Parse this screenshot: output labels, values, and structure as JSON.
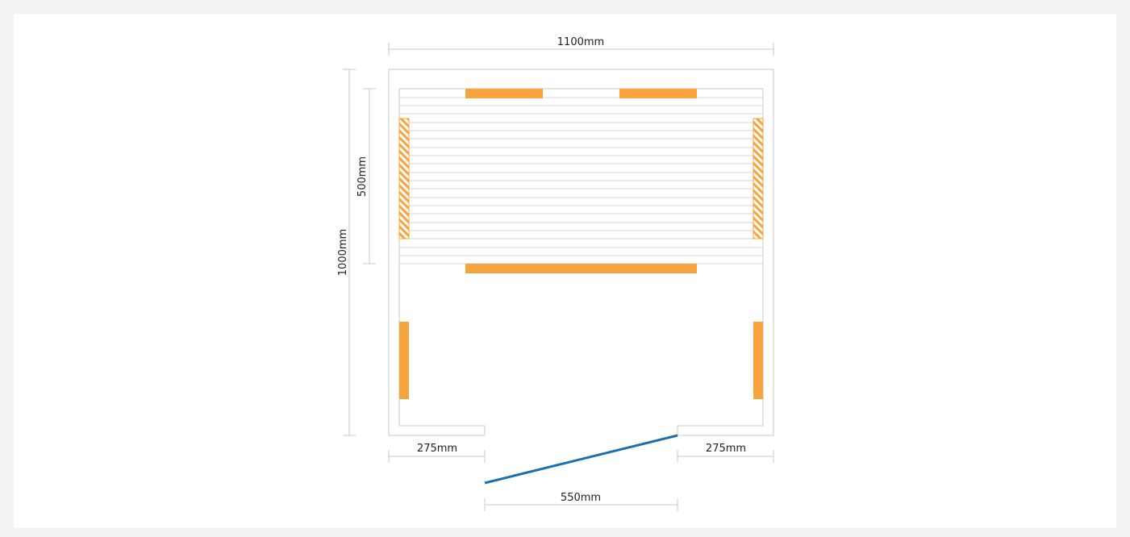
{
  "diagram": {
    "dimensions": {
      "overall_width": "1100mm",
      "overall_depth": "1000mm",
      "bench_depth": "500mm",
      "left_wall_segment": "275mm",
      "right_wall_segment": "275mm",
      "door_opening": "550mm"
    },
    "colors": {
      "heater": "#f7a43e",
      "door": "#1a6fb0",
      "outline": "#c9c9c9",
      "background": "#f2f2f2",
      "card": "#ffffff"
    }
  }
}
